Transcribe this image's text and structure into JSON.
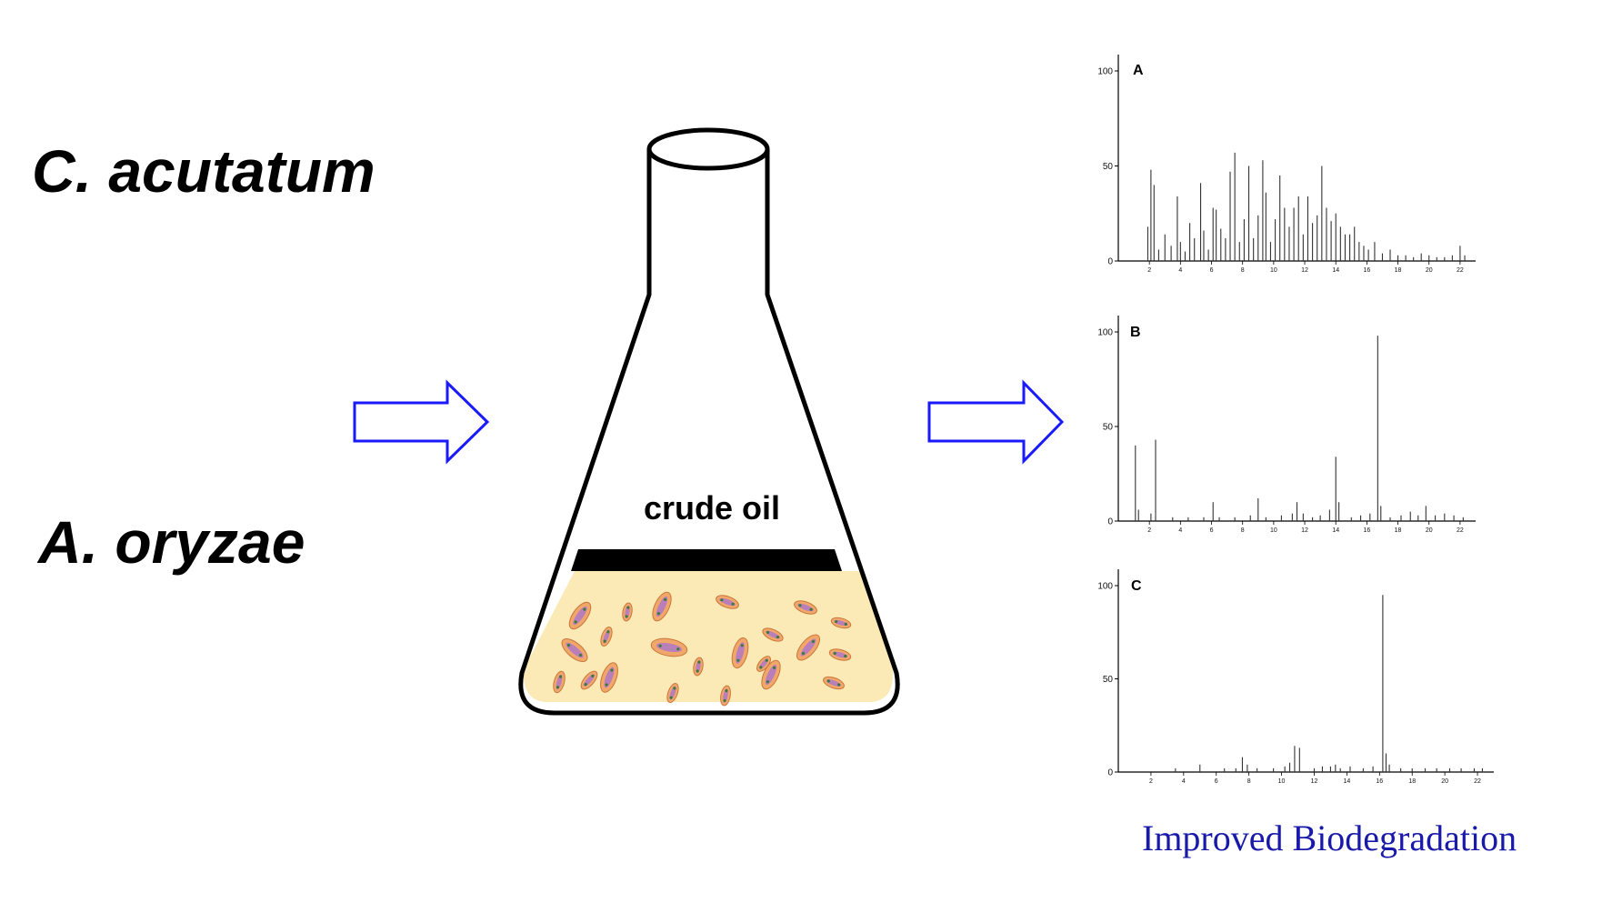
{
  "organisms": {
    "first": "C. acutatum",
    "second": "A. oryzae"
  },
  "flask": {
    "label": "crude oil"
  },
  "footer": {
    "text": "Improved Biodegradation"
  },
  "colors": {
    "arrow": "#1a1aff",
    "footer": "#1a1aaa",
    "medium": "#fbe9b6",
    "oil_layer": "#000000",
    "cell_fill": "#f2a76a",
    "cell_inner": "#b97fb9"
  },
  "chart_data": [
    {
      "type": "line",
      "panel": "A",
      "y_ticks": [
        "100",
        "50",
        "0"
      ],
      "x_ticks": [
        "2",
        "4",
        "6",
        "8",
        "10",
        "12",
        "14",
        "16",
        "18",
        "20",
        "22"
      ],
      "ylim": [
        0,
        100
      ],
      "xlim": [
        0,
        23
      ],
      "peaks": [
        [
          1.9,
          18
        ],
        [
          2.1,
          48
        ],
        [
          2.3,
          40
        ],
        [
          2.6,
          6
        ],
        [
          3.0,
          14
        ],
        [
          3.4,
          8
        ],
        [
          3.8,
          34
        ],
        [
          4.0,
          10
        ],
        [
          4.3,
          5
        ],
        [
          4.6,
          20
        ],
        [
          4.9,
          12
        ],
        [
          5.3,
          41
        ],
        [
          5.5,
          16
        ],
        [
          5.8,
          6
        ],
        [
          6.1,
          28
        ],
        [
          6.3,
          27
        ],
        [
          6.6,
          17
        ],
        [
          6.9,
          12
        ],
        [
          7.2,
          47
        ],
        [
          7.5,
          57
        ],
        [
          7.8,
          10
        ],
        [
          8.1,
          22
        ],
        [
          8.4,
          50
        ],
        [
          8.7,
          12
        ],
        [
          9.0,
          24
        ],
        [
          9.3,
          53
        ],
        [
          9.5,
          36
        ],
        [
          9.8,
          10
        ],
        [
          10.1,
          22
        ],
        [
          10.4,
          45
        ],
        [
          10.7,
          28
        ],
        [
          11.0,
          18
        ],
        [
          11.3,
          28
        ],
        [
          11.6,
          34
        ],
        [
          11.9,
          14
        ],
        [
          12.2,
          34
        ],
        [
          12.5,
          20
        ],
        [
          12.8,
          24
        ],
        [
          13.1,
          50
        ],
        [
          13.4,
          28
        ],
        [
          13.7,
          21
        ],
        [
          14.0,
          25
        ],
        [
          14.3,
          18
        ],
        [
          14.6,
          14
        ],
        [
          14.9,
          14
        ],
        [
          15.2,
          18
        ],
        [
          15.5,
          10
        ],
        [
          15.8,
          8
        ],
        [
          16.1,
          6
        ],
        [
          16.5,
          10
        ],
        [
          17.0,
          4
        ],
        [
          17.5,
          6
        ],
        [
          18.0,
          3
        ],
        [
          18.5,
          3
        ],
        [
          19.0,
          2
        ],
        [
          19.5,
          4
        ],
        [
          20.0,
          3
        ],
        [
          20.5,
          2
        ],
        [
          21.0,
          2
        ],
        [
          21.5,
          3
        ],
        [
          22.0,
          8
        ],
        [
          22.3,
          3
        ]
      ]
    },
    {
      "type": "line",
      "panel": "B",
      "y_ticks": [
        "100",
        "50",
        "0"
      ],
      "x_ticks": [
        "2",
        "4",
        "6",
        "8",
        "10",
        "12",
        "14",
        "16",
        "18",
        "20",
        "22"
      ],
      "ylim": [
        0,
        100
      ],
      "xlim": [
        0,
        23
      ],
      "peaks": [
        [
          1.1,
          40
        ],
        [
          1.3,
          6
        ],
        [
          2.1,
          4
        ],
        [
          2.4,
          43
        ],
        [
          3.5,
          2
        ],
        [
          4.5,
          2
        ],
        [
          5.5,
          2
        ],
        [
          6.1,
          10
        ],
        [
          6.5,
          2
        ],
        [
          7.5,
          2
        ],
        [
          8.5,
          3
        ],
        [
          9.0,
          12
        ],
        [
          9.5,
          2
        ],
        [
          10.5,
          3
        ],
        [
          11.2,
          4
        ],
        [
          11.5,
          10
        ],
        [
          11.9,
          4
        ],
        [
          12.5,
          2
        ],
        [
          13.0,
          3
        ],
        [
          13.6,
          6
        ],
        [
          14.0,
          34
        ],
        [
          14.2,
          10
        ],
        [
          15.0,
          2
        ],
        [
          15.6,
          3
        ],
        [
          16.2,
          4
        ],
        [
          16.7,
          98
        ],
        [
          16.9,
          8
        ],
        [
          17.5,
          2
        ],
        [
          18.2,
          3
        ],
        [
          18.8,
          5
        ],
        [
          19.3,
          3
        ],
        [
          19.8,
          8
        ],
        [
          20.4,
          3
        ],
        [
          21.0,
          4
        ],
        [
          21.6,
          3
        ],
        [
          22.2,
          2
        ]
      ]
    },
    {
      "type": "line",
      "panel": "C",
      "y_ticks": [
        "100",
        "50",
        "0"
      ],
      "x_ticks": [
        "2",
        "4",
        "6",
        "8",
        "10",
        "12",
        "14",
        "16",
        "18",
        "20",
        "22"
      ],
      "ylim": [
        0,
        100
      ],
      "xlim": [
        0,
        23
      ],
      "peaks": [
        [
          3.5,
          2
        ],
        [
          5.0,
          4
        ],
        [
          6.5,
          2
        ],
        [
          7.2,
          2
        ],
        [
          7.6,
          8
        ],
        [
          7.9,
          4
        ],
        [
          8.5,
          2
        ],
        [
          9.5,
          2
        ],
        [
          10.2,
          3
        ],
        [
          10.5,
          5
        ],
        [
          10.8,
          14
        ],
        [
          11.1,
          13
        ],
        [
          12.0,
          2
        ],
        [
          12.5,
          3
        ],
        [
          13.0,
          3
        ],
        [
          13.3,
          4
        ],
        [
          13.6,
          2
        ],
        [
          14.2,
          3
        ],
        [
          15.0,
          2
        ],
        [
          15.6,
          3
        ],
        [
          16.2,
          95
        ],
        [
          16.4,
          10
        ],
        [
          16.6,
          4
        ],
        [
          17.3,
          2
        ],
        [
          18.0,
          2
        ],
        [
          18.8,
          2
        ],
        [
          19.5,
          2
        ],
        [
          20.3,
          2
        ],
        [
          21.0,
          2
        ],
        [
          21.8,
          2
        ],
        [
          22.3,
          2
        ]
      ]
    }
  ]
}
